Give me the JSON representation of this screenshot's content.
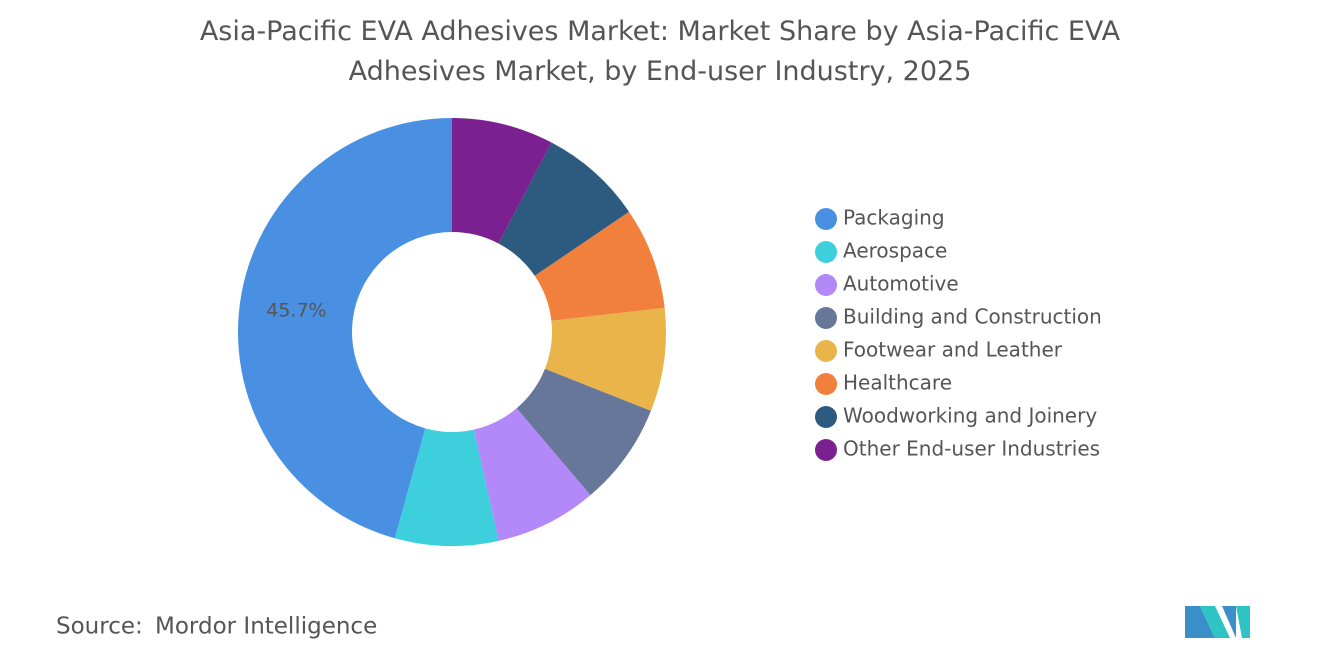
{
  "chart_data": {
    "type": "donut",
    "title": "Asia-Pacific EVA Adhesives Market: Market Share by Asia-Pacific EVA Adhesives Market, by End-user Industry, 2025",
    "categories": [
      "Packaging",
      "Aerospace",
      "Automotive",
      "Building and Construction",
      "Footwear and Leather",
      "Healthcare",
      "Woodworking and Joinery",
      "Other End-user Industries"
    ],
    "values": [
      45.7,
      7.8,
      7.7,
      7.8,
      7.8,
      7.7,
      7.8,
      7.7
    ],
    "value_labels": [
      "45.7%",
      null,
      null,
      null,
      null,
      null,
      null,
      null
    ],
    "colors": [
      "#4a90e2",
      "#3ecfdc",
      "#b388f9",
      "#667799",
      "#e9b54a",
      "#f0803c",
      "#2d5b80",
      "#7b2090"
    ],
    "legend": "right",
    "source_label": "Source:",
    "source": "Mordor Intelligence"
  }
}
